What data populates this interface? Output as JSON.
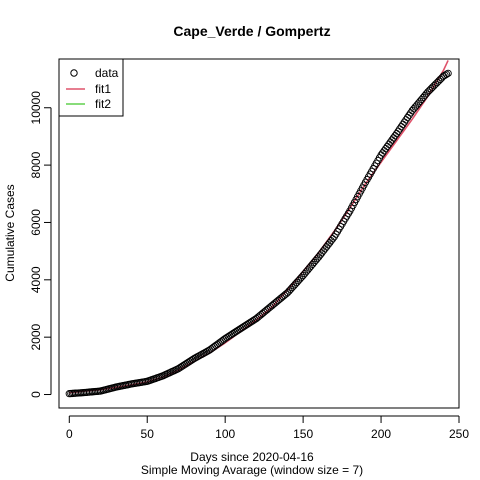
{
  "chart_data": {
    "type": "scatter",
    "title": "Cape_Verde / Gompertz",
    "xlabel": "Days since 2020-04-16",
    "subtitle": "Simple Moving Avarage (window size = 7)",
    "ylabel": "Cumulative Cases",
    "xlim": [
      -6.6,
      250
    ],
    "ylim": [
      -470,
      11700
    ],
    "x_ticks": [
      0,
      50,
      100,
      150,
      200,
      250
    ],
    "y_ticks": [
      0,
      2000,
      4000,
      6000,
      8000,
      10000
    ],
    "legend_position": "top-left",
    "series": [
      {
        "name": "data",
        "kind": "points",
        "color": "#000000",
        "points": [
          [
            0,
            30
          ],
          [
            10,
            70
          ],
          [
            20,
            120
          ],
          [
            30,
            260
          ],
          [
            40,
            370
          ],
          [
            50,
            460
          ],
          [
            60,
            650
          ],
          [
            70,
            900
          ],
          [
            80,
            1250
          ],
          [
            90,
            1550
          ],
          [
            100,
            1950
          ],
          [
            110,
            2300
          ],
          [
            120,
            2650
          ],
          [
            130,
            3100
          ],
          [
            140,
            3550
          ],
          [
            150,
            4150
          ],
          [
            160,
            4800
          ],
          [
            170,
            5500
          ],
          [
            180,
            6400
          ],
          [
            190,
            7400
          ],
          [
            200,
            8350
          ],
          [
            210,
            9100
          ],
          [
            220,
            9900
          ],
          [
            230,
            10550
          ],
          [
            240,
            11100
          ],
          [
            243,
            11200
          ]
        ]
      },
      {
        "name": "fit1",
        "kind": "line",
        "color": "#df536b",
        "points": [
          [
            0,
            60
          ],
          [
            10,
            120
          ],
          [
            20,
            170
          ],
          [
            30,
            250
          ],
          [
            40,
            340
          ],
          [
            50,
            440
          ],
          [
            60,
            610
          ],
          [
            70,
            850
          ],
          [
            80,
            1150
          ],
          [
            90,
            1450
          ],
          [
            100,
            1800
          ],
          [
            110,
            2200
          ],
          [
            120,
            2600
          ],
          [
            130,
            3050
          ],
          [
            140,
            3650
          ],
          [
            150,
            4300
          ],
          [
            160,
            4950
          ],
          [
            170,
            5700
          ],
          [
            180,
            6500
          ],
          [
            190,
            7350
          ],
          [
            200,
            8100
          ],
          [
            210,
            8850
          ],
          [
            220,
            9600
          ],
          [
            230,
            10400
          ],
          [
            240,
            11300
          ],
          [
            243,
            11650
          ]
        ]
      },
      {
        "name": "fit2",
        "kind": "line",
        "color": "#61d04f",
        "points": []
      }
    ]
  }
}
